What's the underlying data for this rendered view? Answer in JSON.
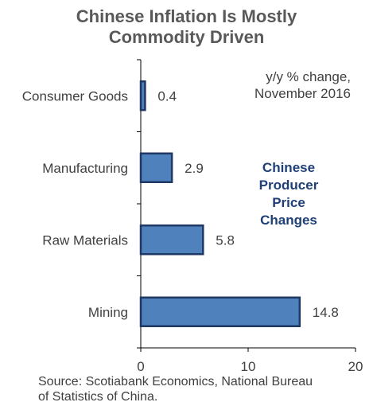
{
  "chart_data": {
    "type": "bar",
    "orientation": "horizontal",
    "title_lines": [
      "Chinese Inflation Is Mostly",
      "Commodity Driven"
    ],
    "unit_lines": [
      "y/y % change,",
      "November 2016"
    ],
    "annotation_lines": [
      "Chinese",
      "Producer",
      "Price",
      "Changes"
    ],
    "categories": [
      "Consumer Goods",
      "Manufacturing",
      "Raw Materials",
      "Mining"
    ],
    "values": [
      0.4,
      2.9,
      5.8,
      14.8
    ],
    "value_labels": [
      "0.4",
      "2.9",
      "5.8",
      "14.8"
    ],
    "xlim": [
      0,
      20
    ],
    "x_ticks": [
      "0",
      "10",
      "20"
    ],
    "source_lines": [
      "Source: Scotiabank Economics, National Bureau",
      "of Statistics of China."
    ],
    "colors": {
      "bar_fill": "#4f81bd",
      "bar_stroke": "#1f3864",
      "title": "#595959",
      "annotation": "#1f3f77"
    }
  }
}
